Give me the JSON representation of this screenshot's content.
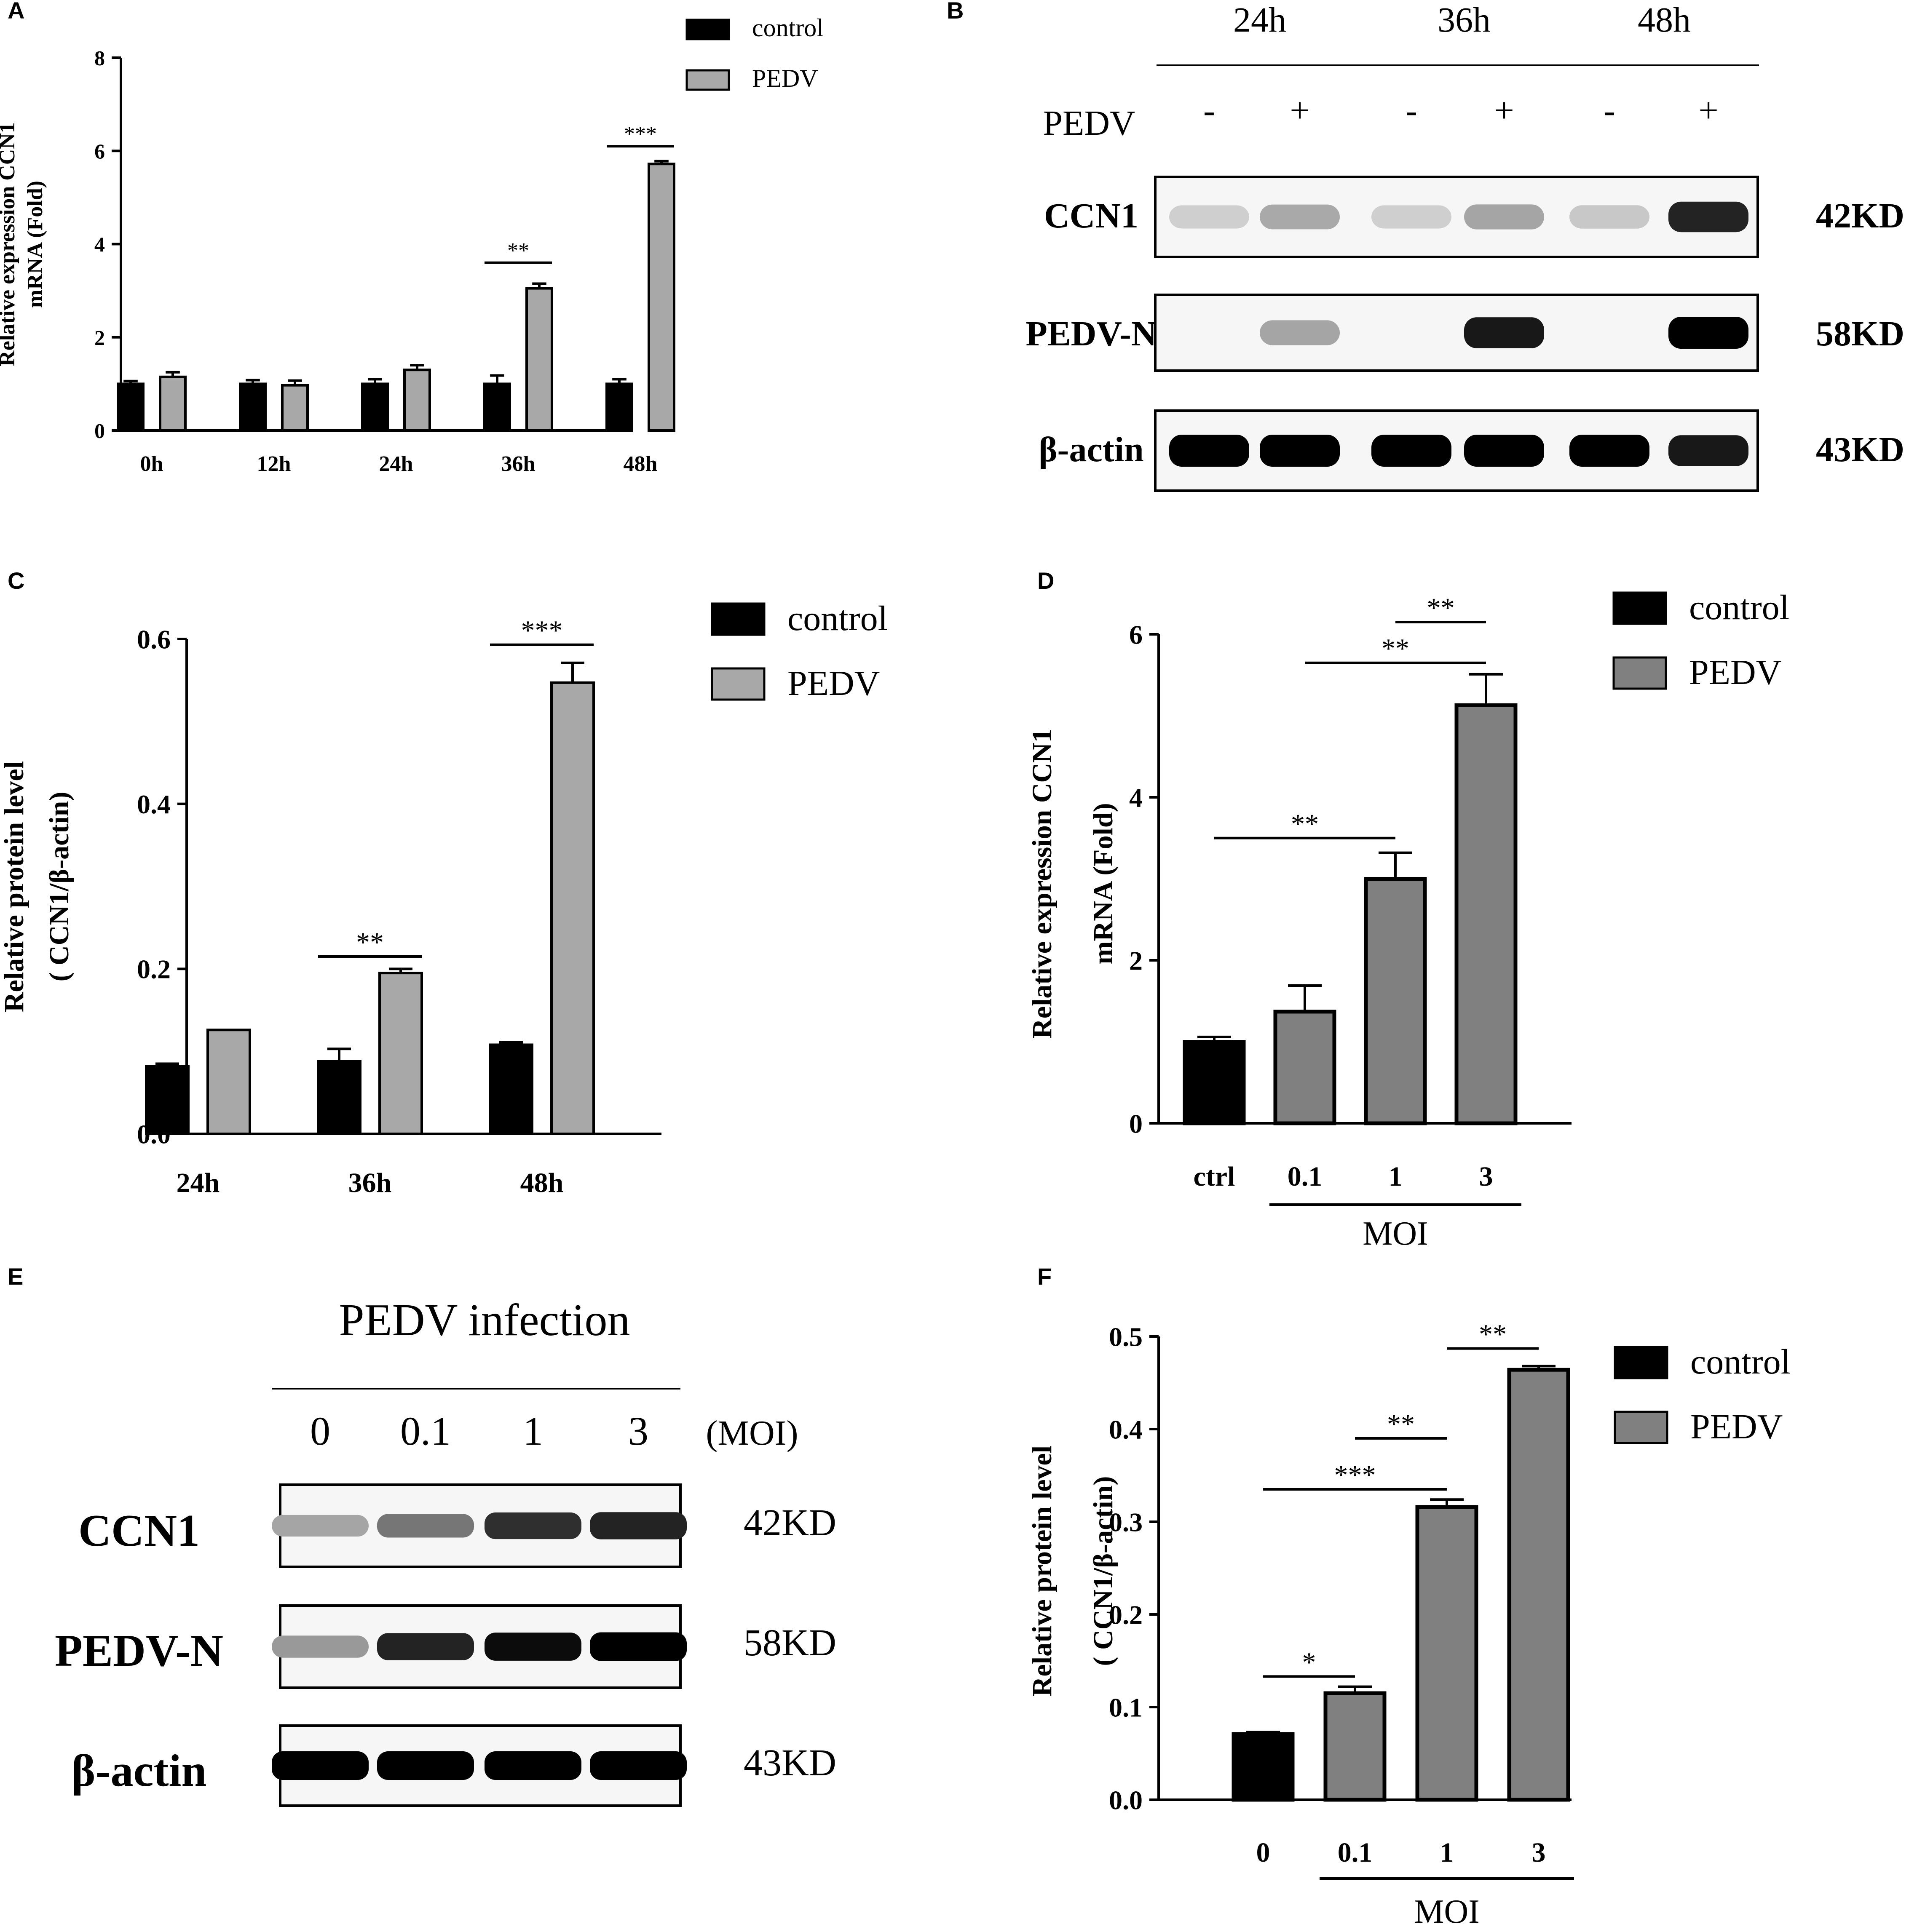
{
  "colors": {
    "control": "#000000",
    "pedv_light": "#a8a8a8",
    "pedv_dark": "#808080",
    "frame": "#000000",
    "blot_bg": "#f6f6f6"
  },
  "panels": {
    "A": {
      "letter": "A"
    },
    "B": {
      "letter": "B"
    },
    "C": {
      "letter": "C"
    },
    "D": {
      "letter": "D"
    },
    "E": {
      "letter": "E"
    },
    "F": {
      "letter": "F"
    }
  },
  "chart_data": [
    {
      "id": "A",
      "type": "bar",
      "ylabel": [
        "Relative expression CCN1",
        "mRNA (Fold)"
      ],
      "xlabel": "",
      "categories": [
        "0h",
        "12h",
        "24h",
        "36h",
        "48h"
      ],
      "ylim": [
        0,
        8
      ],
      "yticks": [
        "0",
        "2",
        "4",
        "6",
        "8"
      ],
      "legend": "top-right",
      "series": [
        {
          "name": "control",
          "color": "#000000",
          "values": [
            1.0,
            1.0,
            1.0,
            1.0,
            1.0
          ],
          "errors": [
            0.06,
            0.08,
            0.1,
            0.18,
            0.1
          ]
        },
        {
          "name": "PEDV",
          "color": "#a8a8a8",
          "values": [
            1.15,
            0.97,
            1.3,
            3.05,
            5.72
          ],
          "errors": [
            0.1,
            0.1,
            0.1,
            0.1,
            0.06
          ]
        }
      ],
      "significance": [
        {
          "label": "**",
          "from": [
            3,
            0
          ],
          "to": [
            3,
            1
          ],
          "y": 3.6
        },
        {
          "label": "***",
          "from": [
            4,
            0
          ],
          "to": [
            4,
            1
          ],
          "y": 6.1
        }
      ]
    },
    {
      "id": "C",
      "type": "bar",
      "ylabel": [
        "Relative protein level",
        "( CCN1/β-actin)"
      ],
      "xlabel": "",
      "categories": [
        "24h",
        "36h",
        "48h"
      ],
      "ylim": [
        0,
        0.6
      ],
      "yticks": [
        "0.0",
        "0.2",
        "0.4",
        "0.6"
      ],
      "legend": "top-right",
      "series": [
        {
          "name": "control",
          "color": "#000000",
          "values": [
            0.082,
            0.088,
            0.108
          ],
          "errors": [
            0.003,
            0.015,
            0.003
          ]
        },
        {
          "name": "PEDV",
          "color": "#a8a8a8",
          "values": [
            0.126,
            0.195,
            0.547
          ],
          "errors": [
            0.0,
            0.005,
            0.024
          ]
        }
      ],
      "significance": [
        {
          "label": "**",
          "from": [
            1,
            0
          ],
          "to": [
            1,
            1
          ],
          "y": 0.215
        },
        {
          "label": "***",
          "from": [
            2,
            0
          ],
          "to": [
            2,
            1
          ],
          "y": 0.593
        }
      ]
    },
    {
      "id": "D",
      "type": "bar",
      "ylabel": [
        "Relative expression CCN1",
        "mRNA (Fold)"
      ],
      "xlabel": "MOI",
      "categories": [
        "ctrl",
        "0.1",
        "1",
        "3"
      ],
      "ylim": [
        0,
        6
      ],
      "yticks": [
        "0",
        "2",
        "4",
        "6"
      ],
      "legend": "top-right",
      "series": [
        {
          "name": "control",
          "color": "#000000"
        },
        {
          "name": "PEDV",
          "color": "#808080"
        }
      ],
      "bars": [
        {
          "category": "ctrl",
          "series": "control",
          "value": 1.0,
          "error": 0.06
        },
        {
          "category": "0.1",
          "series": "PEDV",
          "value": 1.37,
          "error": 0.32
        },
        {
          "category": "1",
          "series": "PEDV",
          "value": 3.0,
          "error": 0.32
        },
        {
          "category": "3",
          "series": "PEDV",
          "value": 5.13,
          "error": 0.38
        }
      ],
      "xgroup": {
        "label": "MOI",
        "from": 1,
        "to": 3
      },
      "significance": [
        {
          "label": "**",
          "from": 0,
          "to": 2,
          "y": 3.5
        },
        {
          "label": "**",
          "from": 1,
          "to": 3,
          "y": 5.65
        },
        {
          "label": "**",
          "from": 2,
          "to": 3,
          "y": 6.15
        }
      ]
    },
    {
      "id": "F",
      "type": "bar",
      "ylabel": [
        "Relative protein level",
        "( CCN1/β-actin)"
      ],
      "xlabel": "MOI",
      "categories": [
        "0",
        "0.1",
        "1",
        "3"
      ],
      "ylim": [
        0,
        0.5
      ],
      "yticks": [
        "0.0",
        "0.1",
        "0.2",
        "0.3",
        "0.4",
        "0.5"
      ],
      "legend": "top-right",
      "series": [
        {
          "name": "control",
          "color": "#000000"
        },
        {
          "name": "PEDV",
          "color": "#808080"
        }
      ],
      "bars": [
        {
          "category": "0",
          "series": "control",
          "value": 0.071,
          "error": 0.002
        },
        {
          "category": "0.1",
          "series": "PEDV",
          "value": 0.115,
          "error": 0.007
        },
        {
          "category": "1",
          "series": "PEDV",
          "value": 0.316,
          "error": 0.008
        },
        {
          "category": "3",
          "series": "PEDV",
          "value": 0.464,
          "error": 0.004
        }
      ],
      "xgroup": {
        "label": "MOI",
        "from": 1,
        "to": 3
      },
      "significance": [
        {
          "label": "*",
          "from": 0,
          "to": 1,
          "y": 0.133
        },
        {
          "label": "***",
          "from": 0,
          "to": 2,
          "y": 0.335
        },
        {
          "label": "**",
          "from": 1,
          "to": 2,
          "y": 0.39
        },
        {
          "label": "**",
          "from": 2,
          "to": 3,
          "y": 0.487
        }
      ]
    }
  ],
  "blots": {
    "B": {
      "time_labels": [
        "24h",
        "36h",
        "48h"
      ],
      "treatment_label": "PEDV",
      "signs": [
        "-",
        "+",
        "-",
        "+",
        "-",
        "+"
      ],
      "rows": [
        {
          "label": "CCN1",
          "size": "42KD",
          "intensities": [
            0.12,
            0.28,
            0.12,
            0.3,
            0.15,
            0.85
          ]
        },
        {
          "label": "PEDV-N",
          "size": "58KD",
          "intensities": [
            0.0,
            0.3,
            0.0,
            0.9,
            0.0,
            1.0
          ]
        },
        {
          "label": "β-actin",
          "size": "43KD",
          "intensities": [
            1.0,
            1.0,
            1.0,
            1.0,
            1.0,
            0.9
          ]
        }
      ]
    },
    "E": {
      "title": "PEDV infection",
      "lanes": [
        "0",
        "0.1",
        "1",
        "3"
      ],
      "unit": "(MOI)",
      "rows": [
        {
          "label": "CCN1",
          "size": "42KD",
          "intensities": [
            0.3,
            0.5,
            0.8,
            0.85
          ]
        },
        {
          "label": "PEDV-N",
          "size": "58KD",
          "intensities": [
            0.35,
            0.85,
            0.95,
            1.0
          ]
        },
        {
          "label": "β-actin",
          "size": "43KD",
          "intensities": [
            1.0,
            1.0,
            1.0,
            1.0
          ]
        }
      ]
    }
  }
}
